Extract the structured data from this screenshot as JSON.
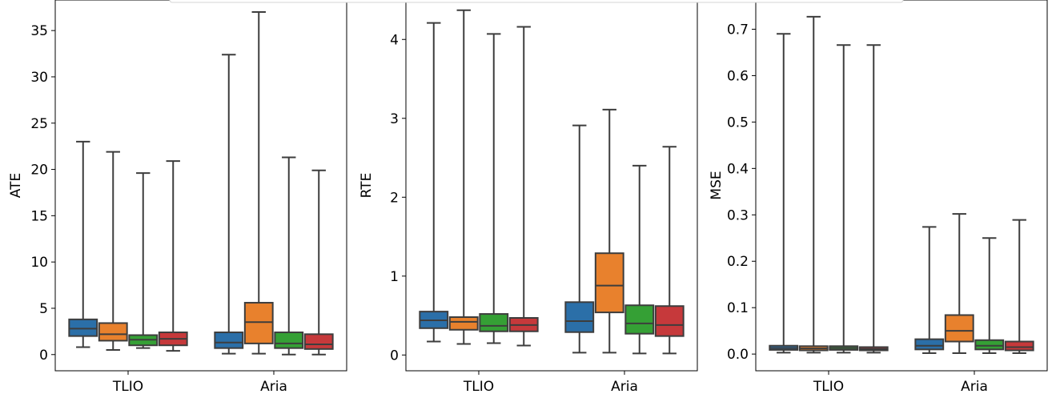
{
  "series_colors": [
    "#2b6fa8",
    "#e8812d",
    "#35a035",
    "#c6393b"
  ],
  "box_stroke": "#3d3d3d",
  "chart_data": [
    {
      "type": "box",
      "ylabel": "ATE",
      "categories": [
        "TLIO",
        "Aria"
      ],
      "ylim": [
        -1.75,
        38.3
      ],
      "yticks": [
        0,
        5,
        10,
        15,
        20,
        25,
        30,
        35
      ],
      "boxes": [
        [
          {
            "min": 0.8,
            "q1": 2.0,
            "median": 2.8,
            "q3": 3.8,
            "max": 23.0
          },
          {
            "min": 0.5,
            "q1": 1.5,
            "median": 2.2,
            "q3": 3.4,
            "max": 21.9
          },
          {
            "min": 0.7,
            "q1": 1.0,
            "median": 1.6,
            "q3": 2.1,
            "max": 19.6
          },
          {
            "min": 0.4,
            "q1": 1.0,
            "median": 1.7,
            "q3": 2.4,
            "max": 20.9
          }
        ],
        [
          {
            "min": 0.1,
            "q1": 0.7,
            "median": 1.3,
            "q3": 2.4,
            "max": 32.4
          },
          {
            "min": 0.1,
            "q1": 1.2,
            "median": 3.5,
            "q3": 5.6,
            "max": 37.0
          },
          {
            "min": 0.0,
            "q1": 0.7,
            "median": 1.2,
            "q3": 2.4,
            "max": 21.3
          },
          {
            "min": 0.0,
            "q1": 0.6,
            "median": 1.1,
            "q3": 2.2,
            "max": 19.9
          }
        ]
      ]
    },
    {
      "type": "box",
      "ylabel": "RTE",
      "categories": [
        "TLIO",
        "Aria"
      ],
      "ylim": [
        -0.2,
        4.5
      ],
      "yticks": [
        0,
        1,
        2,
        3,
        4
      ],
      "boxes": [
        [
          {
            "min": 0.17,
            "q1": 0.34,
            "median": 0.44,
            "q3": 0.55,
            "max": 4.21
          },
          {
            "min": 0.14,
            "q1": 0.32,
            "median": 0.42,
            "q3": 0.48,
            "max": 4.37
          },
          {
            "min": 0.15,
            "q1": 0.3,
            "median": 0.37,
            "q3": 0.52,
            "max": 4.07
          },
          {
            "min": 0.12,
            "q1": 0.3,
            "median": 0.38,
            "q3": 0.47,
            "max": 4.16
          }
        ],
        [
          {
            "min": 0.03,
            "q1": 0.29,
            "median": 0.43,
            "q3": 0.67,
            "max": 2.91
          },
          {
            "min": 0.03,
            "q1": 0.54,
            "median": 0.88,
            "q3": 1.29,
            "max": 3.11
          },
          {
            "min": 0.02,
            "q1": 0.27,
            "median": 0.4,
            "q3": 0.63,
            "max": 2.4
          },
          {
            "min": 0.02,
            "q1": 0.24,
            "median": 0.38,
            "q3": 0.62,
            "max": 2.64
          }
        ]
      ]
    },
    {
      "type": "box",
      "ylabel": "MSE",
      "categories": [
        "TLIO",
        "Aria"
      ],
      "ylim": [
        -0.036,
        0.763
      ],
      "yticks": [
        0.0,
        0.1,
        0.2,
        0.3,
        0.4,
        0.5,
        0.6,
        0.7
      ],
      "tick_labels": [
        "0.0",
        "0.1",
        "0.2",
        "0.3",
        "0.4",
        "0.5",
        "0.6",
        "0.7"
      ],
      "boxes": [
        [
          {
            "min": 0.003,
            "q1": 0.009,
            "median": 0.013,
            "q3": 0.018,
            "max": 0.69
          },
          {
            "min": 0.003,
            "q1": 0.008,
            "median": 0.012,
            "q3": 0.017,
            "max": 0.727
          },
          {
            "min": 0.003,
            "q1": 0.009,
            "median": 0.013,
            "q3": 0.017,
            "max": 0.666
          },
          {
            "min": 0.003,
            "q1": 0.008,
            "median": 0.011,
            "q3": 0.015,
            "max": 0.666
          }
        ],
        [
          {
            "min": 0.002,
            "q1": 0.01,
            "median": 0.018,
            "q3": 0.032,
            "max": 0.274
          },
          {
            "min": 0.002,
            "q1": 0.027,
            "median": 0.05,
            "q3": 0.084,
            "max": 0.302
          },
          {
            "min": 0.002,
            "q1": 0.01,
            "median": 0.018,
            "q3": 0.03,
            "max": 0.25
          },
          {
            "min": 0.002,
            "q1": 0.008,
            "median": 0.015,
            "q3": 0.027,
            "max": 0.289
          }
        ]
      ]
    }
  ]
}
